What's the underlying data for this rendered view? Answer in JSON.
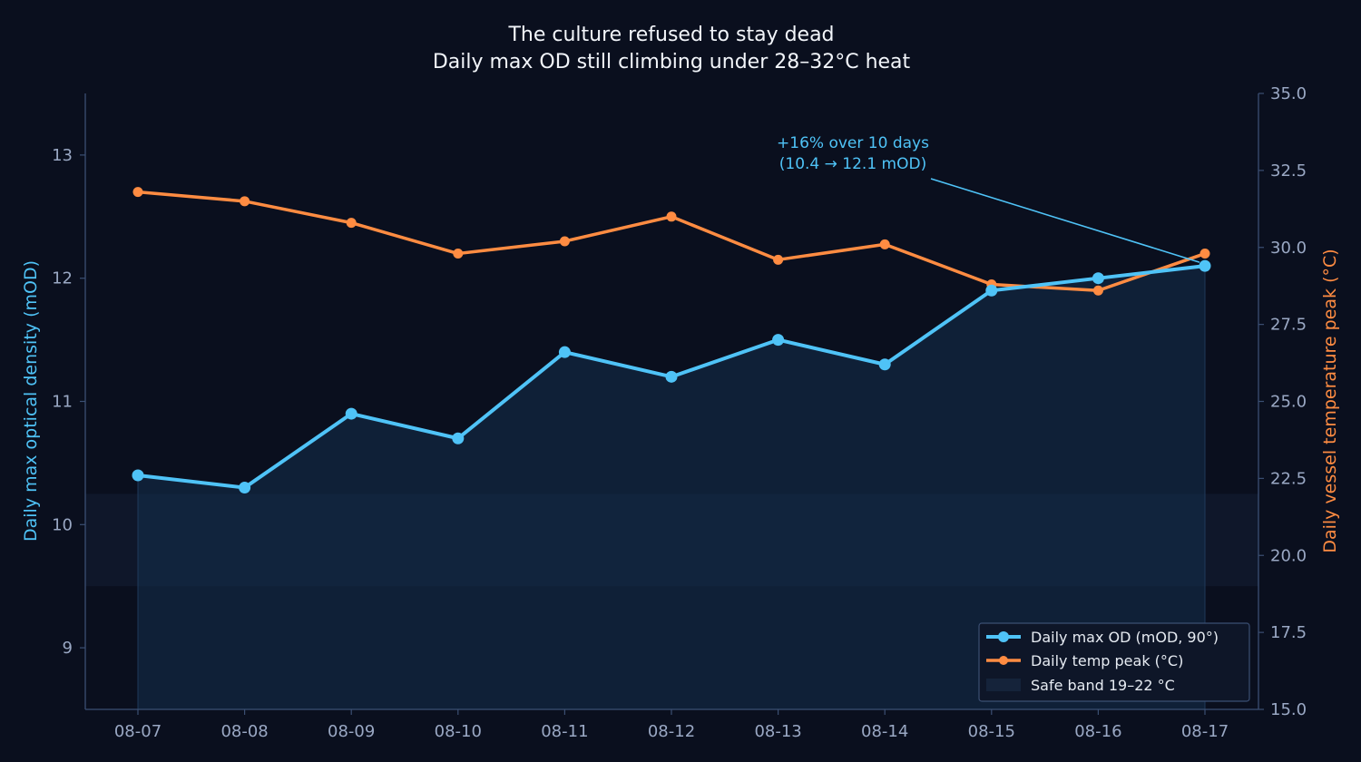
{
  "chart_data": {
    "type": "line",
    "title": "The culture refused to stay dead",
    "subtitle": "Daily max OD still climbing under 28–32°C heat",
    "categories": [
      "08-07",
      "08-08",
      "08-09",
      "08-10",
      "08-11",
      "08-12",
      "08-13",
      "08-14",
      "08-15",
      "08-16",
      "08-17"
    ],
    "ylabel_left": "Daily max optical density (mOD)",
    "ylabel_right": "Daily vessel temperature peak (°C)",
    "ylim_left": [
      8.5,
      13.5
    ],
    "ylim_right": [
      15.0,
      35.0
    ],
    "yticks_left": [
      "9",
      "10",
      "11",
      "12",
      "13"
    ],
    "yticks_right": [
      "15.0",
      "17.5",
      "20.0",
      "22.5",
      "25.0",
      "27.5",
      "30.0",
      "32.5",
      "35.0"
    ],
    "series": [
      {
        "name": "Daily max OD (mOD, 90°)",
        "axis": "left",
        "color": "#4fc3f7",
        "values": [
          10.4,
          10.3,
          10.9,
          10.7,
          11.4,
          11.2,
          11.5,
          11.3,
          11.9,
          12.0,
          12.1
        ]
      },
      {
        "name": "Daily temp peak (°C)",
        "axis": "right",
        "color": "#ff8c42",
        "values": [
          31.8,
          31.5,
          30.8,
          29.8,
          30.2,
          31.0,
          29.6,
          30.1,
          28.8,
          28.6,
          29.8
        ]
      }
    ],
    "safe_band": {
      "name": "Safe band 19–22 °C",
      "axis": "right",
      "range": [
        19,
        22
      ]
    },
    "annotation": {
      "line1": "+16% over 10 days",
      "line2": "(10.4 → 12.1 mOD)",
      "target_index": 10
    },
    "legend_position": "lower-right",
    "grid": false,
    "colors": {
      "background": "#0a0f1e",
      "axis": "#3b4f73",
      "tick": "#9aa8c4"
    }
  }
}
